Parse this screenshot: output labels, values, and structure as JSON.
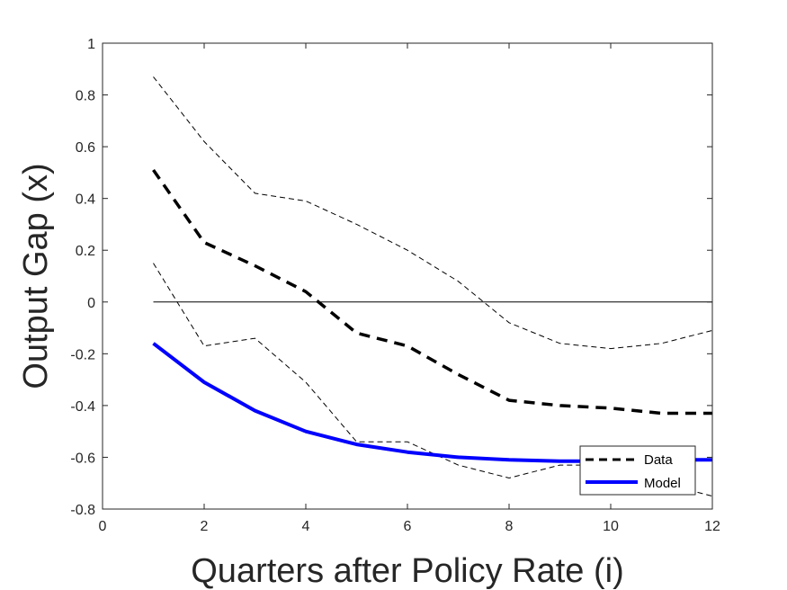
{
  "chart_data": {
    "type": "line",
    "title": "",
    "xlabel": "Quarters after Policy Rate (i)",
    "ylabel": "Output Gap (x)",
    "xlim": [
      0,
      12
    ],
    "ylim": [
      -0.8,
      1
    ],
    "xticks": [
      0,
      2,
      4,
      6,
      8,
      10,
      12
    ],
    "yticks": [
      -0.8,
      -0.6,
      -0.4,
      -0.2,
      0,
      0.2,
      0.4,
      0.6,
      0.8,
      1
    ],
    "grid": false,
    "legend_position": "bottom-right",
    "x": [
      1,
      2,
      3,
      4,
      5,
      6,
      7,
      8,
      9,
      10,
      11,
      12
    ],
    "series": [
      {
        "name": "Data",
        "color": "#000000",
        "style": "dashed",
        "values": [
          0.51,
          0.23,
          0.14,
          0.04,
          -0.12,
          -0.17,
          -0.28,
          -0.38,
          -0.4,
          -0.41,
          -0.43,
          -0.43
        ]
      },
      {
        "name": "Model",
        "color": "#0000ff",
        "style": "solid",
        "values": [
          -0.16,
          -0.31,
          -0.42,
          -0.5,
          -0.55,
          -0.58,
          -0.6,
          -0.61,
          -0.615,
          -0.615,
          -0.61,
          -0.61
        ]
      }
    ],
    "bands": [
      {
        "color": "#000000",
        "style": "thin-dashed",
        "values": [
          0.87,
          0.62,
          0.42,
          0.39,
          0.3,
          0.2,
          0.08,
          -0.08,
          -0.16,
          -0.18,
          -0.16,
          -0.11
        ]
      },
      {
        "color": "#000000",
        "style": "thin-dashed",
        "values": [
          0.15,
          -0.17,
          -0.14,
          -0.31,
          -0.54,
          -0.54,
          -0.63,
          -0.68,
          -0.63,
          -0.63,
          -0.7,
          -0.75
        ]
      }
    ],
    "reference_line": {
      "y": 0,
      "color": "#000000"
    }
  }
}
